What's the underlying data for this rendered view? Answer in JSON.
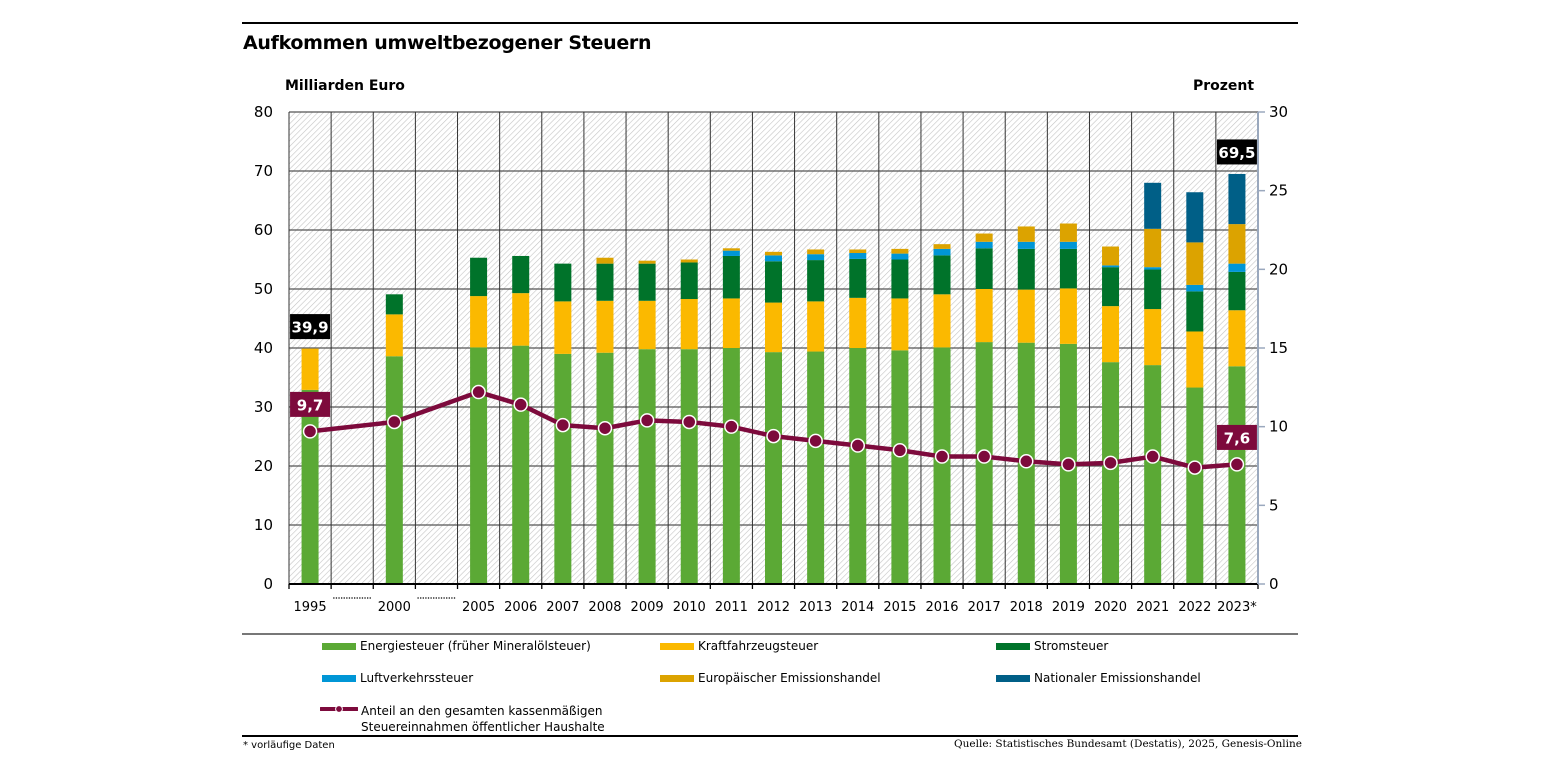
{
  "chart_data": {
    "type": "bar",
    "subtype": "stacked-bar-with-line",
    "title": "Aufkommen umweltbezogener Steuern",
    "ylabel": "Milliarden Euro",
    "y2label": "Prozent",
    "ylim": [
      0,
      80
    ],
    "y2lim": [
      0,
      30
    ],
    "yticks": [
      0,
      10,
      20,
      30,
      40,
      50,
      60,
      70,
      80
    ],
    "y2ticks": [
      0,
      5,
      10,
      15,
      20,
      25,
      30
    ],
    "grid": true,
    "categories": [
      "1995",
      "",
      "2000",
      "",
      "2005",
      "2006",
      "2007",
      "2008",
      "2009",
      "2010",
      "2011",
      "2012",
      "2013",
      "2014",
      "2015",
      "2016",
      "2017",
      "2018",
      "2019",
      "2020",
      "2021",
      "2022",
      "2023*"
    ],
    "gap_categories": [
      1,
      3
    ],
    "series": [
      {
        "name": "Energiesteuer (früher Mineralölsteuer)",
        "color": "#5ba935",
        "values": [
          32.9,
          null,
          38.6,
          null,
          40.1,
          40.4,
          39.0,
          39.2,
          39.8,
          39.8,
          40.0,
          39.3,
          39.4,
          40.0,
          39.6,
          40.1,
          41.0,
          40.9,
          40.7,
          37.6,
          37.1,
          33.3,
          36.9
        ]
      },
      {
        "name": "Kraftfahrzeugsteuer",
        "color": "#fbb900",
        "values": [
          7.0,
          null,
          7.1,
          null,
          8.7,
          8.9,
          8.9,
          8.8,
          8.2,
          8.5,
          8.4,
          8.4,
          8.5,
          8.5,
          8.8,
          9.0,
          9.0,
          9.0,
          9.4,
          9.5,
          9.5,
          9.5,
          9.5
        ]
      },
      {
        "name": "Stromsteuer",
        "color": "#00732a",
        "values": [
          0,
          null,
          3.4,
          null,
          6.5,
          6.3,
          6.4,
          6.3,
          6.3,
          6.2,
          7.2,
          7.0,
          7.0,
          6.6,
          6.6,
          6.6,
          6.9,
          6.9,
          6.7,
          6.6,
          6.7,
          6.8,
          6.5
        ]
      },
      {
        "name": "Luftverkehrssteuer",
        "color": "#0096d6",
        "values": [
          0,
          null,
          0,
          null,
          0,
          0,
          0,
          0,
          0,
          0,
          0.9,
          1.0,
          1.0,
          1.0,
          1.0,
          1.1,
          1.1,
          1.2,
          1.2,
          0.3,
          0.4,
          1.1,
          1.4
        ]
      },
      {
        "name": "Europäischer Emissionshandel",
        "color": "#dca300",
        "values": [
          0,
          null,
          0,
          null,
          0,
          0,
          0,
          1.0,
          0.5,
          0.5,
          0.4,
          0.6,
          0.8,
          0.6,
          0.8,
          0.8,
          1.4,
          2.6,
          3.1,
          3.2,
          6.5,
          7.2,
          6.7
        ]
      },
      {
        "name": "Nationaler Emissionshandel",
        "color": "#005f87",
        "values": [
          0,
          null,
          0,
          null,
          0,
          0,
          0,
          0,
          0,
          0,
          0,
          0,
          0,
          0,
          0,
          0,
          0,
          0,
          0,
          0,
          7.8,
          8.5,
          8.5
        ]
      }
    ],
    "line": {
      "name": "Anteil an den gesamten kassenmäßigen Steuereinnahmen öffentlicher Haushalte",
      "color": "#7d0a3c",
      "axis": "right",
      "values": [
        9.7,
        null,
        10.3,
        null,
        12.2,
        11.4,
        10.1,
        9.9,
        10.4,
        10.3,
        10.0,
        9.4,
        9.1,
        8.8,
        8.5,
        8.1,
        8.1,
        7.8,
        7.6,
        7.7,
        8.1,
        7.4,
        7.6
      ]
    },
    "annotations": [
      {
        "text": "39,9",
        "category": "1995",
        "kind": "bar-total"
      },
      {
        "text": "69,5",
        "category": "2023*",
        "kind": "bar-total"
      },
      {
        "text": "9,7",
        "category": "1995",
        "kind": "line-value"
      },
      {
        "text": "7,6",
        "category": "2023*",
        "kind": "line-value"
      }
    ],
    "legend_position": "bottom"
  },
  "legend": [
    {
      "label": "Energiesteuer (früher Mineralölsteuer)",
      "color": "#5ba935"
    },
    {
      "label": "Kraftfahrzeugsteuer",
      "color": "#fbb900"
    },
    {
      "label": "Stromsteuer",
      "color": "#00732a"
    },
    {
      "label": "Luftverkehrssteuer",
      "color": "#0096d6"
    },
    {
      "label": "Europäischer Emissionshandel",
      "color": "#dca300"
    },
    {
      "label": "Nationaler Emissionshandel",
      "color": "#005f87"
    },
    {
      "label": "Anteil an den gesamten kassenmäßigen Steuereinnahmen öffentlicher Haushalte",
      "label_line1": "Anteil an den gesamten kassenmäßigen",
      "label_line2": "Steuereinnahmen öffentlicher Haushalte",
      "color": "#7d0a3c"
    }
  ],
  "footer": {
    "note": "* vorläufige Daten",
    "source": "Quelle: Statistisches Bundesamt (Destatis), 2025, Genesis-Online"
  }
}
